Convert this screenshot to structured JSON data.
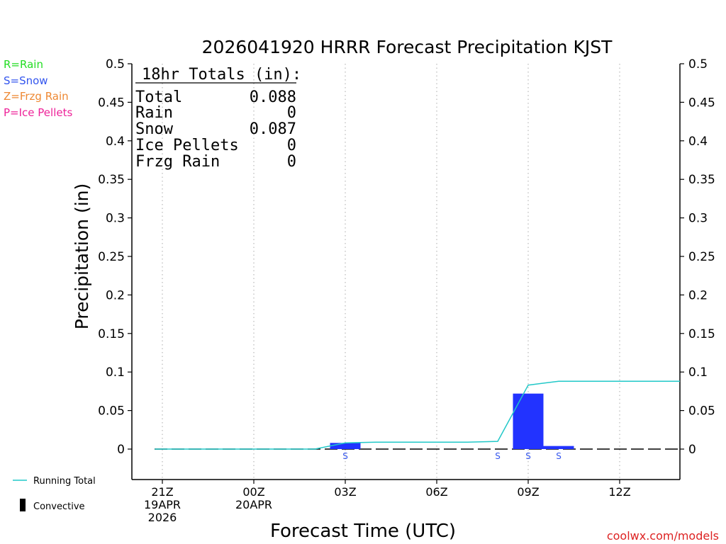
{
  "legend": {
    "types": [
      {
        "label": "R=Rain",
        "color": "#22dd22"
      },
      {
        "label": "S=Snow",
        "color": "#3355ee"
      },
      {
        "label": "Z=Frzg Rain",
        "color": "#ee8833"
      },
      {
        "label": "P=Ice Pellets",
        "color": "#ee2299"
      }
    ],
    "running_total_label": "Running Total",
    "convective_label": "Convective"
  },
  "totals_box": {
    "heading": "18hr Totals (in):",
    "rows": [
      {
        "label": "Total",
        "value": "0.088"
      },
      {
        "label": "Rain",
        "value": "0"
      },
      {
        "label": "Snow",
        "value": "0.087"
      },
      {
        "label": "Ice Pellets",
        "value": "0"
      },
      {
        "label": "Frzg Rain",
        "value": "0"
      }
    ]
  },
  "credit": "coolwx.com/models",
  "colors": {
    "snow_bar": "#2233ff",
    "running_total": "#22c8c8",
    "grid": "#aaaaaa",
    "credit": "#dd2222"
  },
  "chart_data": {
    "type": "bar",
    "title": "2026041920 HRRR Forecast Precipitation KJST",
    "xlabel": "Forecast Time (UTC)",
    "ylabel": "Precipitation (in)",
    "ylim": [
      -0.04,
      0.5
    ],
    "xlim": [
      -0.8,
      17.0
    ],
    "yticks": [
      0,
      0.05,
      0.1,
      0.15,
      0.2,
      0.25,
      0.3,
      0.35,
      0.4,
      0.45,
      0.5
    ],
    "ytick_labels": [
      "0",
      "0.05",
      "0.1",
      "0.15",
      "0.2",
      "0.25",
      "0.3",
      "0.35",
      "0.4",
      "0.45",
      "0.5"
    ],
    "xticks": [
      {
        "hour": 0,
        "lines": [
          "21Z",
          "19APR",
          "2026"
        ]
      },
      {
        "hour": 3,
        "lines": [
          "00Z",
          "20APR"
        ]
      },
      {
        "hour": 6,
        "lines": [
          "03Z"
        ]
      },
      {
        "hour": 9,
        "lines": [
          "06Z"
        ]
      },
      {
        "hour": 12,
        "lines": [
          "09Z"
        ]
      },
      {
        "hour": 15,
        "lines": [
          "12Z"
        ]
      }
    ],
    "grid": true,
    "series": [
      {
        "name": "Snow",
        "type": "bar",
        "hours": [
          6,
          12,
          13
        ],
        "values": [
          0.008,
          0.072,
          0.004
        ]
      },
      {
        "name": "Running Total",
        "type": "line",
        "hours": [
          -0.25,
          5,
          6,
          7,
          8,
          9,
          10,
          11,
          12,
          13,
          14,
          15,
          16,
          17
        ],
        "values": [
          0,
          0,
          0.008,
          0.009,
          0.009,
          0.009,
          0.009,
          0.01,
          0.083,
          0.088,
          0.088,
          0.088,
          0.088,
          0.088
        ]
      }
    ],
    "type_markers": [
      {
        "hour": 6,
        "label": "S"
      },
      {
        "hour": 11,
        "label": "S"
      },
      {
        "hour": 12,
        "label": "S"
      },
      {
        "hour": 13,
        "label": "S"
      }
    ]
  }
}
